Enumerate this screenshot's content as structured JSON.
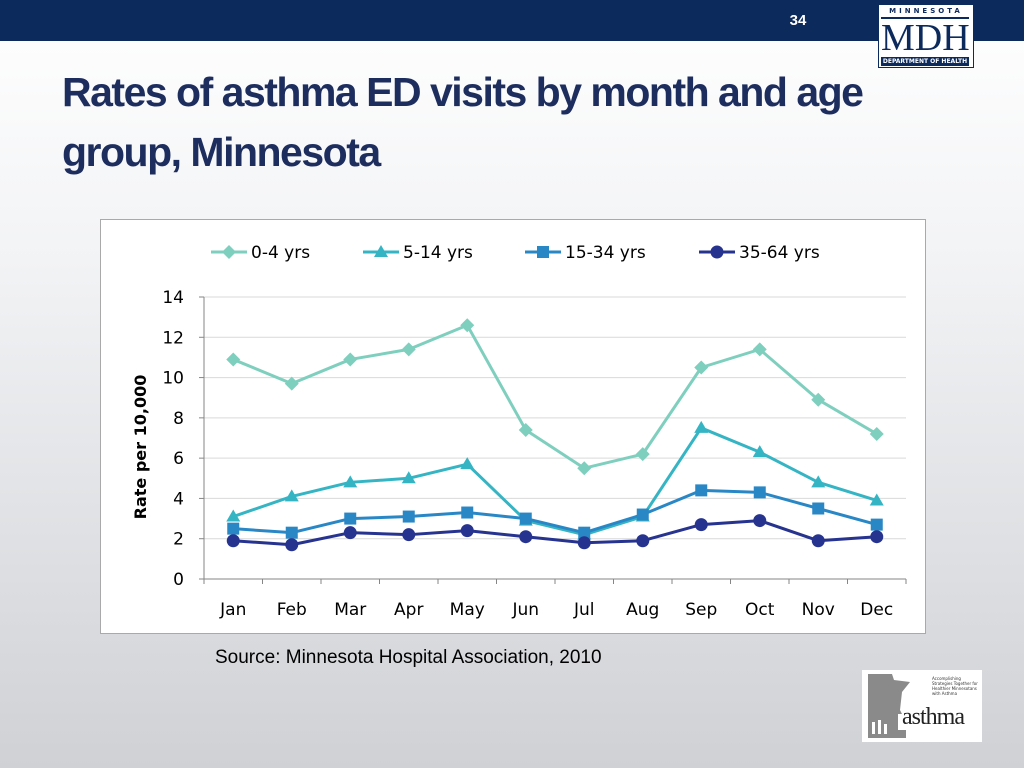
{
  "slide": {
    "number": "34"
  },
  "header": {
    "logo": {
      "state_text": "MINNESOTA",
      "abbr": "MDH",
      "dept_text": "DEPARTMENT OF HEALTH"
    }
  },
  "title": "Rates of asthma ED visits by month and age group, Minnesota",
  "source": "Source: Minnesota Hospital Association, 2010",
  "footer_logo": {
    "word": "asthma",
    "tagline": "Accomplishing Strategies Together for Healthier Minnesotans with Asthma"
  },
  "colors": {
    "top_bar": "#0d2a5c",
    "title": "#1d2d5e",
    "series_0_4": "#7fcfbf",
    "series_5_14": "#35b5c4",
    "series_15_34": "#2a87c6",
    "series_35_64": "#26338f"
  },
  "chart_data": {
    "type": "line",
    "title": "",
    "xlabel": "",
    "ylabel": "Rate per 10,000",
    "ylim": [
      0,
      14
    ],
    "yticks": [
      "0",
      "2",
      "4",
      "6",
      "8",
      "10",
      "12",
      "14"
    ],
    "grid": "horizontal",
    "legend": "top",
    "categories": [
      "Jan",
      "Feb",
      "Mar",
      "Apr",
      "May",
      "Jun",
      "Jul",
      "Aug",
      "Sep",
      "Oct",
      "Nov",
      "Dec"
    ],
    "series": [
      {
        "name": "0-4 yrs",
        "marker": "diamond",
        "color": "#7fcfbf",
        "values": [
          10.9,
          9.7,
          10.9,
          11.4,
          12.6,
          7.4,
          5.5,
          6.2,
          10.5,
          11.4,
          8.9,
          7.2
        ]
      },
      {
        "name": "5-14 yrs",
        "marker": "triangle",
        "color": "#35b5c4",
        "values": [
          3.1,
          4.1,
          4.8,
          5.0,
          5.7,
          2.9,
          2.2,
          3.1,
          7.5,
          6.3,
          4.8,
          3.9
        ]
      },
      {
        "name": "15-34 yrs",
        "marker": "square",
        "color": "#2a87c6",
        "values": [
          2.5,
          2.3,
          3.0,
          3.1,
          3.3,
          3.0,
          2.3,
          3.2,
          4.4,
          4.3,
          3.5,
          2.7
        ]
      },
      {
        "name": "35-64 yrs",
        "marker": "circle",
        "color": "#26338f",
        "values": [
          1.9,
          1.7,
          2.3,
          2.2,
          2.4,
          2.1,
          1.8,
          1.9,
          2.7,
          2.9,
          1.9,
          2.1
        ]
      }
    ]
  }
}
